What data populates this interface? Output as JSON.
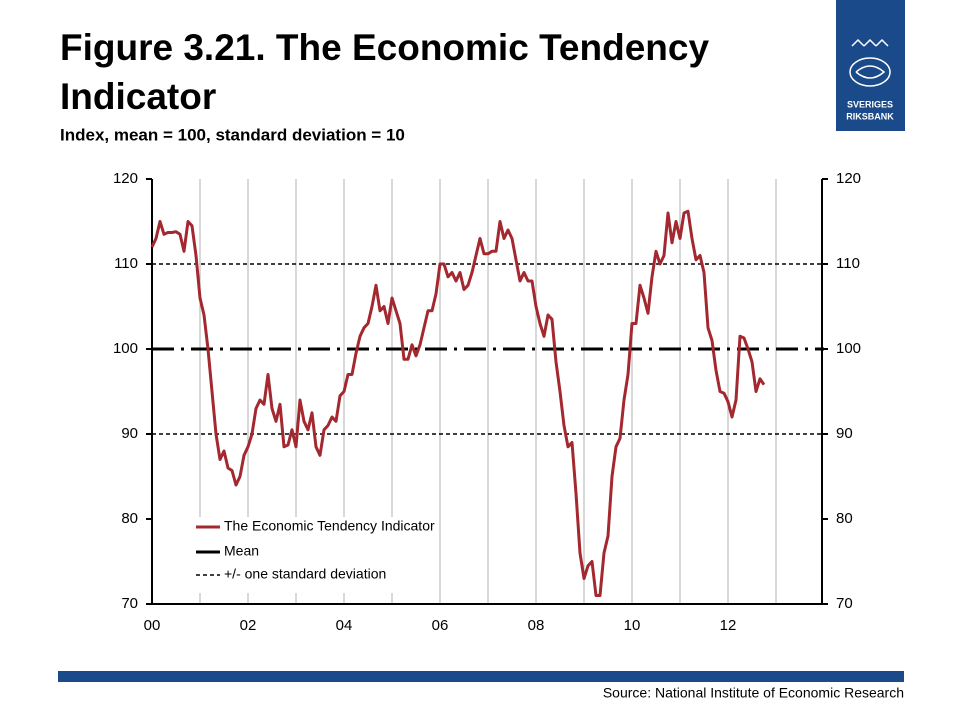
{
  "chart_data": {
    "type": "line",
    "title_line1": "Figure 3.21. The Economic Tendency",
    "title_line2": "Indicator",
    "subtitle": "Index, mean = 100, standard deviation = 10",
    "logo": [
      "SVERIGES",
      "RIKSBANK"
    ],
    "source": "Source: National Institute of Economic Research",
    "xlim": [
      2000,
      2014
    ],
    "xticks": [
      {
        "value": 2000,
        "label": "00"
      },
      {
        "value": 2002,
        "label": "02"
      },
      {
        "value": 2004,
        "label": "04"
      },
      {
        "value": 2006,
        "label": "06"
      },
      {
        "value": 2008,
        "label": "08"
      },
      {
        "value": 2010,
        "label": "10"
      },
      {
        "value": 2012,
        "label": "12"
      }
    ],
    "xgrid": [
      2001,
      2003,
      2005,
      2007,
      2009,
      2011,
      2013
    ],
    "ylim": [
      70,
      120
    ],
    "yticks": [
      70,
      80,
      90,
      100,
      110,
      120
    ],
    "grid": true,
    "legend": "lower left",
    "reference_lines": [
      {
        "name": "Mean",
        "values": [
          100
        ],
        "style": "dashdot",
        "color": "#000000"
      },
      {
        "name": "+/- one standard deviation",
        "values": [
          90,
          110
        ],
        "style": "dashed",
        "color": "#000000"
      }
    ],
    "x": [
      2000,
      2000.083,
      2000.167,
      2000.25,
      2000.333,
      2000.417,
      2000.5,
      2000.583,
      2000.667,
      2000.75,
      2000.833,
      2000.917,
      2001,
      2001.083,
      2001.167,
      2001.25,
      2001.333,
      2001.417,
      2001.5,
      2001.583,
      2001.667,
      2001.75,
      2001.833,
      2001.917,
      2002,
      2002.083,
      2002.167,
      2002.25,
      2002.333,
      2002.417,
      2002.5,
      2002.583,
      2002.667,
      2002.75,
      2002.833,
      2002.917,
      2003,
      2003.083,
      2003.167,
      2003.25,
      2003.333,
      2003.417,
      2003.5,
      2003.583,
      2003.667,
      2003.75,
      2003.833,
      2003.917,
      2004,
      2004.083,
      2004.167,
      2004.25,
      2004.333,
      2004.417,
      2004.5,
      2004.583,
      2004.667,
      2004.75,
      2004.833,
      2004.917,
      2005,
      2005.083,
      2005.167,
      2005.25,
      2005.333,
      2005.417,
      2005.5,
      2005.583,
      2005.667,
      2005.75,
      2005.833,
      2005.917,
      2006,
      2006.083,
      2006.167,
      2006.25,
      2006.333,
      2006.417,
      2006.5,
      2006.583,
      2006.667,
      2006.75,
      2006.833,
      2006.917,
      2007,
      2007.083,
      2007.167,
      2007.25,
      2007.333,
      2007.417,
      2007.5,
      2007.583,
      2007.667,
      2007.75,
      2007.833,
      2007.917,
      2008,
      2008.083,
      2008.167,
      2008.25,
      2008.333,
      2008.417,
      2008.5,
      2008.583,
      2008.667,
      2008.75,
      2008.833,
      2008.917,
      2009,
      2009.083,
      2009.167,
      2009.25,
      2009.333,
      2009.417,
      2009.5,
      2009.583,
      2009.667,
      2009.75,
      2009.833,
      2009.917,
      2010,
      2010.083,
      2010.167,
      2010.25,
      2010.333,
      2010.417,
      2010.5,
      2010.583,
      2010.667,
      2010.75,
      2010.833,
      2010.917,
      2011,
      2011.083,
      2011.167,
      2011.25,
      2011.333,
      2011.417,
      2011.5,
      2011.583,
      2011.667,
      2011.75,
      2011.833,
      2011.917,
      2012,
      2012.083,
      2012.167,
      2012.25,
      2012.333,
      2012.417,
      2012.5,
      2012.583,
      2012.667,
      2012.75
    ],
    "series": [
      {
        "name": "The Economic Tendency Indicator",
        "color": "#a3282f",
        "values": [
          112,
          113,
          115,
          113.5,
          113.7,
          113.7,
          113.8,
          113.5,
          111.5,
          115,
          114.5,
          111,
          106,
          104,
          100,
          95,
          90,
          87,
          88,
          86,
          85.7,
          84,
          85,
          87.5,
          88.5,
          90,
          93,
          94,
          93.5,
          97,
          93,
          91.5,
          93.5,
          88.5,
          88.7,
          90.5,
          88.5,
          94,
          91.5,
          90.5,
          92.5,
          88.5,
          87.5,
          90.5,
          91,
          92,
          91.5,
          94.5,
          95,
          97,
          97,
          99.5,
          101.5,
          102.5,
          103,
          105,
          107.5,
          104.5,
          105,
          103,
          106,
          104.5,
          103,
          98.8,
          98.8,
          100.5,
          99.2,
          100.5,
          102.5,
          104.5,
          104.5,
          106.5,
          110,
          110,
          108.5,
          109,
          108,
          109,
          107,
          107.5,
          109,
          111,
          113,
          111.2,
          111.2,
          111.5,
          111.5,
          115,
          113,
          114,
          113,
          110.5,
          108,
          109,
          108,
          108,
          105,
          103,
          101.5,
          104,
          103.5,
          98.5,
          95,
          91,
          88.5,
          89,
          83,
          76,
          73,
          74.5,
          75,
          71,
          71,
          76,
          78,
          85,
          88.5,
          89.5,
          94,
          97,
          103,
          103,
          107.5,
          106,
          104.2,
          108.5,
          111.5,
          110,
          111,
          116,
          112.5,
          115,
          113,
          116,
          116.2,
          113,
          110.5,
          111,
          109,
          102.5,
          101,
          97.5,
          95,
          94.8,
          93.8,
          92,
          94,
          101.5,
          101.3,
          100,
          98.5,
          95,
          96.5,
          95.8
        ]
      }
    ]
  }
}
